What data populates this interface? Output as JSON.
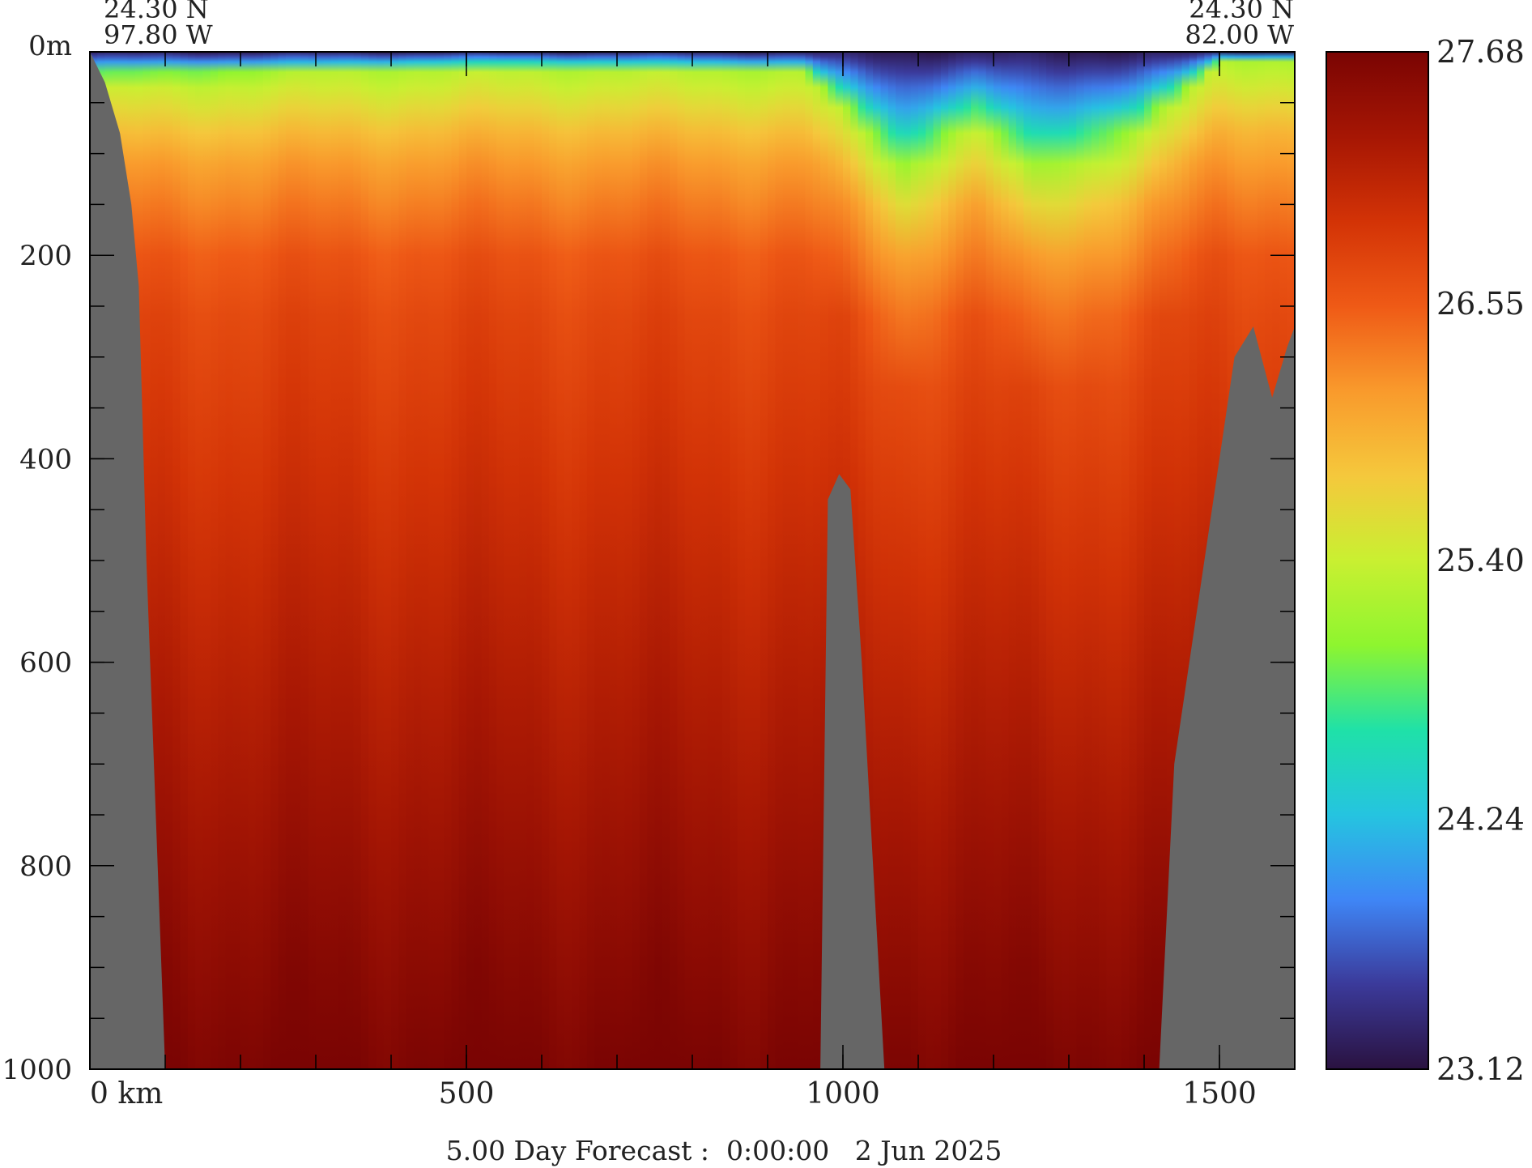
{
  "chart_data": {
    "type": "heatmap",
    "title": "",
    "caption": "5.00 Day Forecast :  0:00:00   2 Jun 2025",
    "corner_labels": {
      "left_lat": "24.30 N",
      "left_lon": "97.80 W",
      "right_lat": "24.30 N",
      "right_lon": "82.00 W"
    },
    "x_axis": {
      "label": "",
      "range": [
        0,
        1600
      ],
      "ticks": [
        {
          "value": 0,
          "label": "0 km"
        },
        {
          "value": 500,
          "label": "500"
        },
        {
          "value": 1000,
          "label": "1000"
        },
        {
          "value": 1500,
          "label": "1500"
        }
      ],
      "minor_step": 100
    },
    "y_axis": {
      "label": "",
      "range": [
        0,
        1000
      ],
      "inverted": true,
      "ticks": [
        {
          "value": 0,
          "label": "0m"
        },
        {
          "value": 200,
          "label": "200"
        },
        {
          "value": 400,
          "label": "400"
        },
        {
          "value": 600,
          "label": "600"
        },
        {
          "value": 800,
          "label": "800"
        },
        {
          "value": 1000,
          "label": "1000"
        }
      ],
      "minor_step": 50
    },
    "colorbar": {
      "min": 23.12,
      "max": 27.68,
      "tick_labels": [
        "27.68",
        "26.55",
        "25.40",
        "24.24",
        "23.12"
      ],
      "tick_values": [
        27.68,
        26.55,
        25.4,
        24.24,
        23.12
      ]
    },
    "land_color": "#666666",
    "colormap": [
      "#2a1240",
      "#3b3a9a",
      "#3f86f6",
      "#25c4e0",
      "#1fe1a8",
      "#8ef52f",
      "#c9f031",
      "#f5c83c",
      "#f99a2c",
      "#ef5a16",
      "#d33306",
      "#a61604",
      "#7a0403"
    ],
    "bathymetry_profile": [
      {
        "x": 0,
        "depth": 0
      },
      {
        "x": 20,
        "depth": 30
      },
      {
        "x": 40,
        "depth": 80
      },
      {
        "x": 55,
        "depth": 150
      },
      {
        "x": 65,
        "depth": 230
      },
      {
        "x": 75,
        "depth": 500
      },
      {
        "x": 100,
        "depth": 1000
      },
      {
        "x": 970,
        "depth": 1000
      },
      {
        "x": 980,
        "depth": 440
      },
      {
        "x": 995,
        "depth": 415
      },
      {
        "x": 1010,
        "depth": 430
      },
      {
        "x": 1025,
        "depth": 600
      },
      {
        "x": 1055,
        "depth": 1000
      },
      {
        "x": 1420,
        "depth": 1000
      },
      {
        "x": 1440,
        "depth": 700
      },
      {
        "x": 1490,
        "depth": 450
      },
      {
        "x": 1520,
        "depth": 300
      },
      {
        "x": 1545,
        "depth": 270
      },
      {
        "x": 1570,
        "depth": 340
      },
      {
        "x": 1590,
        "depth": 290
      },
      {
        "x": 1600,
        "depth": 270
      }
    ],
    "thermocline_profile": [
      {
        "x": 0,
        "depth": 25
      },
      {
        "x": 300,
        "depth": 20
      },
      {
        "x": 560,
        "depth": 15
      },
      {
        "x": 950,
        "depth": 20
      },
      {
        "x": 1020,
        "depth": 70
      },
      {
        "x": 1080,
        "depth": 120
      },
      {
        "x": 1130,
        "depth": 90
      },
      {
        "x": 1180,
        "depth": 70
      },
      {
        "x": 1250,
        "depth": 120
      },
      {
        "x": 1300,
        "depth": 110
      },
      {
        "x": 1390,
        "depth": 80
      },
      {
        "x": 1500,
        "depth": 10
      },
      {
        "x": 1600,
        "depth": 10
      }
    ]
  }
}
